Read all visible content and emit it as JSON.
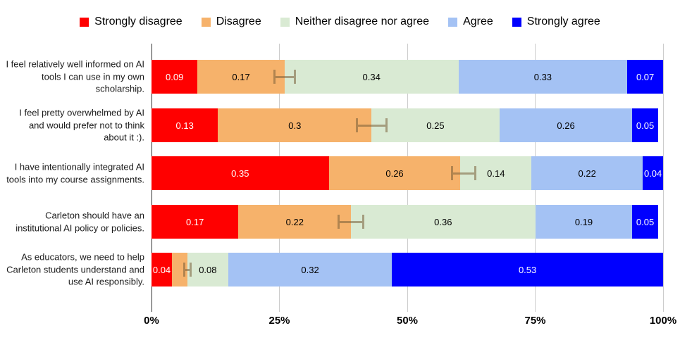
{
  "chart_data": {
    "type": "bar",
    "orientation": "horizontal",
    "stacked": true,
    "title": "",
    "xlabel": "",
    "ylabel": "",
    "xlim": [
      0,
      1
    ],
    "grid": true,
    "legend_position": "top",
    "value_label_min": 0.04,
    "categories": [
      "I feel relatively well informed on AI tools I can use in my own scholarship.",
      "I feel pretty overwhelmed by AI and would prefer not to think about it :).",
      "I have intentionally integrated AI tools into my course assignments.",
      "Carleton should have an institutional AI policy or policies.",
      "As educators, we need to help Carleton students understand and use AI responsibly."
    ],
    "series": [
      {
        "name": "Strongly disagree",
        "color": "#ff0000",
        "label_color": "#ffffff",
        "values": [
          0.09,
          0.13,
          0.35,
          0.17,
          0.04
        ]
      },
      {
        "name": "Disagree",
        "color": "#f6b26b",
        "label_color": "#000000",
        "values": [
          0.17,
          0.3,
          0.26,
          0.22,
          0.03
        ]
      },
      {
        "name": "Neither disagree nor agree",
        "color": "#d9ead3",
        "label_color": "#000000",
        "values": [
          0.34,
          0.25,
          0.14,
          0.36,
          0.08
        ]
      },
      {
        "name": "Agree",
        "color": "#a4c2f4",
        "label_color": "#000000",
        "values": [
          0.33,
          0.26,
          0.22,
          0.19,
          0.32
        ]
      },
      {
        "name": "Strongly agree",
        "color": "#0000ff",
        "label_color": "#ffffff",
        "values": [
          0.07,
          0.05,
          0.04,
          0.05,
          0.53
        ]
      }
    ],
    "error_bars": {
      "on_series": "Disagree",
      "centers": [
        0.26,
        0.43,
        0.61,
        0.39,
        0.07
      ],
      "half_widths": [
        0.022,
        0.031,
        0.025,
        0.026,
        0.008
      ],
      "color": "#7a6039",
      "opacity": 0.55
    },
    "x_ticks": [
      {
        "pos": 0.0,
        "label": "0%"
      },
      {
        "pos": 0.25,
        "label": "25%"
      },
      {
        "pos": 0.5,
        "label": "50%"
      },
      {
        "pos": 0.75,
        "label": "75%"
      },
      {
        "pos": 1.0,
        "label": "100%"
      }
    ],
    "colors": {
      "background": "#ffffff",
      "gridline": "#cccccc",
      "axis_line": "#333333",
      "tick_label": "#000000",
      "category_label": "#1a1a1a"
    }
  }
}
